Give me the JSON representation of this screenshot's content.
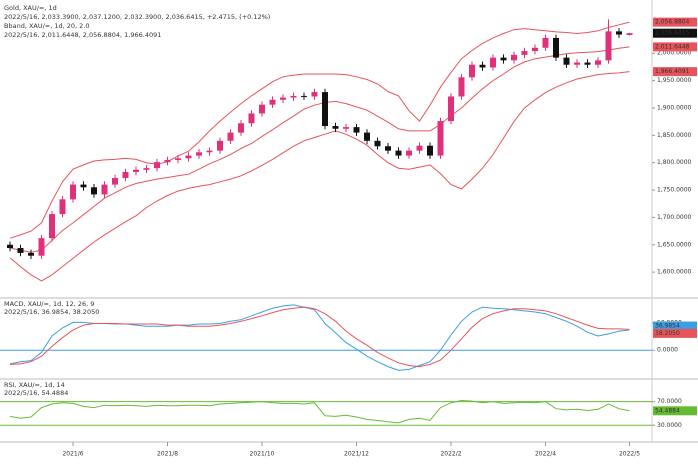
{
  "chart_data": [
    {
      "type": "candlestick",
      "title": "Gold, XAU/=, 1d",
      "subtitle": "2022/5/16, 2,033.3900, 2,037.1200, 2,032.3900, 2,036.6415, +2.4715, (+0.12%)",
      "band_title": "Bband, XAU/=, 1d, 20, 2.0",
      "band_subtitle": "2022/5/16, 2,011.6448, 2,056.8804, 1,966.4091",
      "categories": [
        null,
        null,
        null,
        null,
        null,
        null,
        "2021/6",
        null,
        null,
        null,
        null,
        null,
        null,
        null,
        null,
        "2021/8",
        null,
        null,
        null,
        null,
        null,
        null,
        null,
        null,
        "2021/10",
        null,
        null,
        null,
        null,
        null,
        null,
        null,
        null,
        "2021/12",
        null,
        null,
        null,
        null,
        null,
        null,
        null,
        null,
        "2022/2",
        null,
        null,
        null,
        null,
        null,
        null,
        null,
        null,
        "2022/4",
        null,
        null,
        null,
        null,
        null,
        null,
        null,
        "2022/5"
      ],
      "open": [
        1650,
        1644,
        1635,
        1630,
        1662,
        1706,
        1733,
        1760,
        1755,
        1742,
        1760,
        1772,
        1783,
        1787,
        1790,
        1801,
        1805,
        1808,
        1813,
        1819,
        1822,
        1840,
        1855,
        1872,
        1890,
        1906,
        1915,
        1919,
        1922,
        1921,
        1929,
        1867,
        1862,
        1865,
        1855,
        1840,
        1830,
        1822,
        1813,
        1822,
        1831,
        1813,
        1876,
        1921,
        1956,
        1979,
        1974,
        1992,
        1987,
        1997,
        2004,
        2010,
        2028,
        1992,
        1979,
        1983,
        1979,
        1987,
        2040,
        2033.39
      ],
      "high": [
        1656,
        1650,
        1641,
        1668,
        1712,
        1739,
        1766,
        1766,
        1761,
        1766,
        1778,
        1789,
        1793,
        1796,
        1807,
        1811,
        1814,
        1819,
        1825,
        1828,
        1846,
        1861,
        1878,
        1896,
        1912,
        1921,
        1925,
        1928,
        1928,
        1935,
        1935,
        1873,
        1871,
        1871,
        1861,
        1846,
        1836,
        1828,
        1828,
        1837,
        1837,
        1882,
        1927,
        1962,
        1985,
        1985,
        1998,
        1998,
        2003,
        2010,
        2016,
        2034,
        2034,
        1998,
        1989,
        1989,
        1993,
        2062,
        2046,
        2037.12
      ],
      "low": [
        1638,
        1629,
        1624,
        1624,
        1656,
        1700,
        1727,
        1749,
        1736,
        1736,
        1754,
        1766,
        1777,
        1781,
        1784,
        1795,
        1799,
        1802,
        1807,
        1813,
        1816,
        1834,
        1849,
        1866,
        1884,
        1900,
        1909,
        1913,
        1915,
        1915,
        1861,
        1856,
        1856,
        1849,
        1834,
        1824,
        1816,
        1807,
        1807,
        1816,
        1807,
        1807,
        1870,
        1915,
        1950,
        1968,
        1968,
        1981,
        1981,
        1991,
        1998,
        2004,
        1986,
        1973,
        1973,
        1973,
        1973,
        1981,
        2028.17,
        2032.39
      ],
      "close": [
        1644,
        1635,
        1630,
        1662,
        1706,
        1733,
        1760,
        1755,
        1742,
        1760,
        1772,
        1783,
        1787,
        1790,
        1801,
        1805,
        1808,
        1813,
        1819,
        1822,
        1840,
        1855,
        1872,
        1890,
        1906,
        1915,
        1919,
        1922,
        1921,
        1929,
        1867,
        1862,
        1865,
        1855,
        1840,
        1830,
        1822,
        1813,
        1822,
        1831,
        1813,
        1876,
        1921,
        1956,
        1979,
        1974,
        1992,
        1987,
        1997,
        2004,
        2010,
        2028,
        1992,
        1979,
        1983,
        1979,
        1987,
        2040,
        2034.17,
        2036.6415
      ],
      "up_color": "#e0307a",
      "down_color": "#111111",
      "bands": {
        "color": "#e8545a",
        "upper": [
          1662,
          1668,
          1675,
          1690,
          1730,
          1765,
          1788,
          1796,
          1803,
          1805,
          1806,
          1808,
          1806,
          1800,
          1797,
          1802,
          1812,
          1821,
          1838,
          1858,
          1876,
          1892,
          1908,
          1922,
          1935,
          1948,
          1957,
          1960,
          1962,
          1962,
          1962,
          1962,
          1961,
          1957,
          1952,
          1944,
          1930,
          1922,
          1895,
          1876,
          1905,
          1938,
          1965,
          1990,
          2005,
          2018,
          2028,
          2036,
          2043,
          2045,
          2043,
          2041,
          2039,
          2038,
          2036,
          2038,
          2041,
          2047,
          2052,
          2056.8804
        ],
        "middle": [
          1644,
          1640,
          1636,
          1640,
          1658,
          1676,
          1690,
          1705,
          1720,
          1735,
          1745,
          1755,
          1762,
          1766,
          1770,
          1773,
          1776,
          1779,
          1788,
          1798,
          1806,
          1815,
          1826,
          1835,
          1848,
          1860,
          1873,
          1885,
          1898,
          1905,
          1910,
          1912,
          1908,
          1902,
          1896,
          1885,
          1874,
          1862,
          1858,
          1858,
          1858,
          1870,
          1886,
          1900,
          1918,
          1935,
          1950,
          1962,
          1975,
          1984,
          1990,
          1993,
          1996,
          1999,
          2001,
          2002,
          2003,
          2006,
          2009,
          2011.6448
        ],
        "lower": [
          1626,
          1610,
          1595,
          1584,
          1595,
          1610,
          1625,
          1640,
          1655,
          1668,
          1680,
          1692,
          1703,
          1718,
          1730,
          1740,
          1748,
          1753,
          1757,
          1760,
          1765,
          1770,
          1776,
          1785,
          1795,
          1806,
          1818,
          1830,
          1840,
          1846,
          1852,
          1858,
          1852,
          1843,
          1832,
          1815,
          1800,
          1790,
          1788,
          1792,
          1796,
          1780,
          1760,
          1752,
          1770,
          1790,
          1815,
          1845,
          1875,
          1900,
          1915,
          1928,
          1938,
          1946,
          1953,
          1957,
          1961,
          1963,
          1964,
          1966.4091
        ]
      },
      "last_labels": {
        "upper": "2,056.8804",
        "close": "2,036.6415",
        "middle": "2,011.6448",
        "lower": "1,966.4091"
      },
      "ylim": [
        1560,
        2090
      ],
      "yticks": [
        {
          "value": 1600,
          "label": "1,600.0000"
        },
        {
          "value": 1650,
          "label": "1,650.0000"
        },
        {
          "value": 1700,
          "label": "1,700.0000"
        },
        {
          "value": 1750,
          "label": "1,750.0000"
        },
        {
          "value": 1800,
          "label": "1,800.0000"
        },
        {
          "value": 1850,
          "label": "1,850.0000"
        },
        {
          "value": 1900,
          "label": "1,900.0000"
        },
        {
          "value": 1950,
          "label": "1,950.0000"
        },
        {
          "value": 2000,
          "label": "2,000.0000"
        }
      ]
    },
    {
      "type": "line",
      "title": "MACD, XAU/=, 1d, 12, 26, 9",
      "subtitle": "2022/5/16, 36.9854, 38.2050",
      "series": [
        {
          "color": "#3b9fe2",
          "value_label": "36.9854",
          "values": [
            -25,
            -21,
            -19,
            -4,
            26,
            41,
            51,
            51,
            49,
            49,
            48,
            48,
            46,
            44,
            44,
            44,
            46,
            46,
            48,
            48,
            49,
            53,
            56,
            63,
            70,
            77,
            81,
            83,
            79,
            74,
            49,
            32,
            14,
            2,
            -11,
            -21,
            -30,
            -37,
            -35,
            -28,
            -21,
            0,
            28,
            53,
            70,
            79,
            77,
            76,
            74,
            72,
            70,
            67,
            60,
            53,
            44,
            33,
            26,
            30,
            35,
            36.9854
          ]
        },
        {
          "color": "#e8545a",
          "value_label": "38.2050",
          "values": [
            -26,
            -25,
            -21,
            -11,
            7,
            23,
            37,
            46,
            49,
            49,
            49,
            48,
            48,
            48,
            48,
            46,
            46,
            44,
            44,
            44,
            46,
            49,
            53,
            58,
            63,
            69,
            74,
            77,
            79,
            76,
            67,
            53,
            35,
            21,
            9,
            -4,
            -14,
            -23,
            -28,
            -30,
            -26,
            -18,
            0,
            21,
            42,
            58,
            67,
            72,
            76,
            76,
            74,
            72,
            67,
            60,
            53,
            46,
            40,
            39,
            39,
            38.205
          ]
        }
      ],
      "reference_lines": [
        0
      ],
      "reference_color": "#3b9fe2",
      "ylim": [
        -49,
        92
      ],
      "yticks": [
        {
          "value": 0,
          "label": "0.0000"
        },
        {
          "value": 50,
          "label": "50.0000"
        }
      ]
    },
    {
      "type": "line",
      "title": "RSI, XAU/=, 1d, 14",
      "subtitle": "2022/5/16, 54.4884",
      "series": [
        {
          "color": "#66bb33",
          "value_label": "54.4884",
          "values": [
            45,
            42,
            44,
            60,
            66,
            68,
            67,
            62,
            60,
            64,
            63,
            64,
            63,
            62,
            64,
            63,
            63,
            64,
            64,
            63,
            66,
            67,
            68,
            69,
            70,
            68,
            67,
            67,
            66,
            68,
            46,
            45,
            47,
            44,
            40,
            38,
            36,
            34,
            40,
            42,
            38,
            60,
            68,
            72,
            71,
            68,
            70,
            67,
            68,
            69,
            68,
            70,
            58,
            56,
            57,
            55,
            57,
            66,
            58,
            54.4884
          ]
        }
      ],
      "reference_lines": [
        30,
        70
      ],
      "reference_color": "#66bb33",
      "ylim": [
        5,
        105
      ],
      "yticks": [
        {
          "value": 30,
          "label": "30.0000"
        },
        {
          "value": 70,
          "label": "70.0000"
        }
      ]
    }
  ]
}
